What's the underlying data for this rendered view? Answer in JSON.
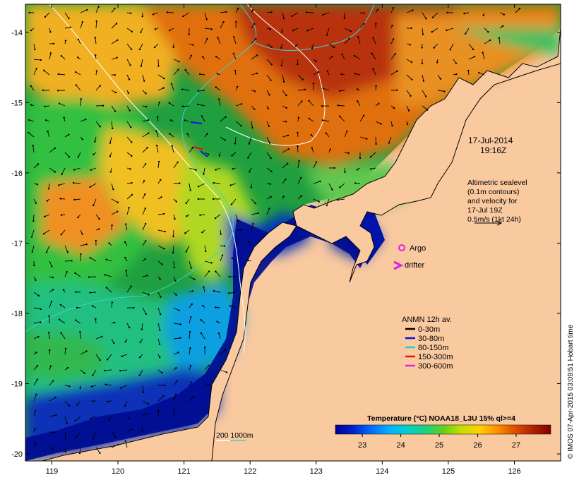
{
  "map": {
    "lon_ticks": [
      "119",
      "120",
      "121",
      "122",
      "123",
      "124",
      "125",
      "126"
    ],
    "lat_ticks": [
      "-14",
      "-15",
      "-16",
      "-17",
      "-18",
      "-19",
      "-20"
    ],
    "lon_range": [
      118.6,
      126.7
    ],
    "lat_range": [
      -20.1,
      -13.6
    ]
  },
  "timestamp": {
    "date": "17-Jul-2014",
    "time": "19:16Z"
  },
  "altimetry_note": {
    "lines": [
      "Altimetric sealevel",
      "(0.1m contours)",
      "and velocity for",
      "17-Jul 19Z",
      "0.5m/s (1kt 24h)"
    ]
  },
  "markers": {
    "argo_label": "Argo",
    "drifter_label": "drifter",
    "argo_color": "#e020e0",
    "drifter_color": "#e020e0"
  },
  "anmn_legend": {
    "title": "ANMN 12h av.",
    "items": [
      {
        "label": "0-30m",
        "color": "#000000"
      },
      {
        "label": "30-80m",
        "color": "#1010e0"
      },
      {
        "label": "80-150m",
        "color": "#20d0d0"
      },
      {
        "label": "150-300m",
        "color": "#e01010"
      },
      {
        "label": "300-600m",
        "color": "#e020e0"
      }
    ]
  },
  "isobath_legend": {
    "label": "200  1000m",
    "colors": [
      "#ffffff",
      "#40d0d0"
    ]
  },
  "colorbar": {
    "title": "Temperature (°C) NOAA18_L3U 15% ql>=4",
    "ticks": [
      "23",
      "24",
      "25",
      "26",
      "27"
    ],
    "range": [
      22.3,
      27.9
    ],
    "colors": [
      "#000090",
      "#0020d0",
      "#0070ff",
      "#00b0ff",
      "#00d0d0",
      "#20d080",
      "#60d020",
      "#c0e000",
      "#ffd000",
      "#ff9000",
      "#e05000",
      "#b02000",
      "#800000"
    ]
  },
  "credit": "© IMOS 07-Apr-2015 03:09:51 Hobart time",
  "colors": {
    "land": "#f9c9a0",
    "background": "#ffffff"
  }
}
